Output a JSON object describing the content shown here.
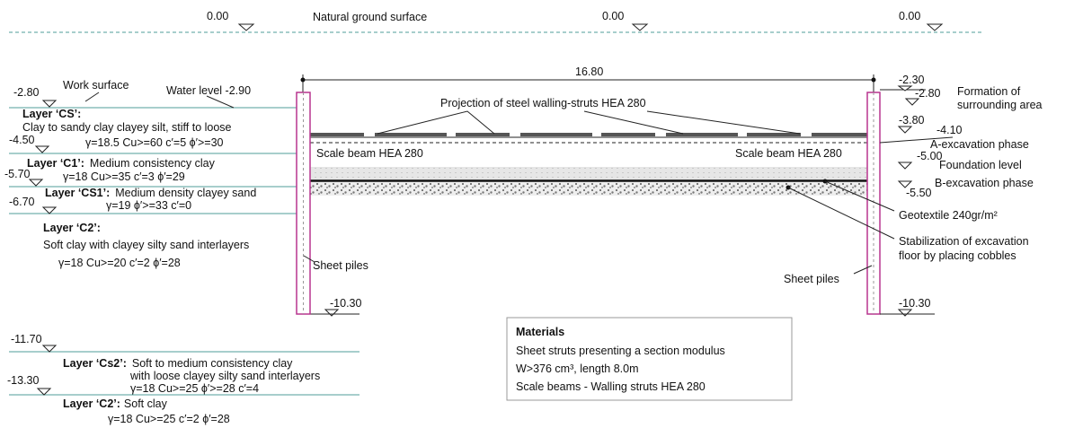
{
  "ground": {
    "label": "Natural ground surface",
    "elevations": [
      "0.00",
      "0.00",
      "0.00"
    ]
  },
  "span": "16.80",
  "left_elevations": [
    "-2.80",
    "-4.50",
    "-5.70",
    "-6.70",
    "-10.30",
    "-11.70",
    "-13.30"
  ],
  "right_elevations": [
    "-2.30",
    "-2.80",
    "-3.80",
    "-4.10",
    "-5.00",
    "-5.50",
    "-10.30"
  ],
  "labels": {
    "work_surface": "Work surface",
    "water_level": "Water level -2.90",
    "struts": "Projection of steel walling-struts HEA 280",
    "scale_beam_left": "Scale beam HEA 280",
    "scale_beam_right": "Scale beam HEA 280",
    "sheet_piles_left": "Sheet piles",
    "sheet_piles_right": "Sheet piles",
    "formation": [
      "Formation of",
      "surrounding area"
    ],
    "a_phase": "A-excavation phase",
    "foundation": "Foundation level",
    "b_phase": "B-excavation phase",
    "geotextile": "Geotextile 240gr/m²",
    "stabilization": [
      "Stabilization of excavation",
      "floor by placing cobbles"
    ]
  },
  "layers": [
    {
      "name": "Layer ‘CS’:",
      "description": [
        "Clay to sandy clay clayey silt, stiff to loose"
      ],
      "params": "γ=18.5    Cu>=60    c′=5    ϕ′>=30"
    },
    {
      "name": "Layer ‘C1’:",
      "description": [
        "Medium consistency clay"
      ],
      "params": "γ=18    Cu>=35    c′=3    ϕ′=29"
    },
    {
      "name": "Layer ‘CS1’:",
      "description": [
        "Medium density clayey sand"
      ],
      "params": "γ=19    ϕ′>=33    c′=0"
    },
    {
      "name": "Layer ‘C2’:",
      "description": [
        "Soft clay with clayey silty sand interlayers"
      ],
      "params": "γ=18     Cu>=20     c′=2     ϕ′=28"
    },
    {
      "name": "Layer ‘Cs2’:",
      "description": [
        "Soft to medium consistency clay",
        "with loose clayey silty sand interlayers"
      ],
      "params": "γ=18     Cu>=25     ϕ′>=28     c′=4"
    },
    {
      "name": "Layer ‘C2’:",
      "description": [
        "Soft clay"
      ],
      "params": "γ=18     Cu>=25      c′=2      ϕ′=28"
    }
  ],
  "materials": {
    "title": "Materials",
    "lines": [
      "Sheet struts presenting a section modulus",
      "W>376 cm³, length 8.0m",
      "Scale beams - Walling struts HEA 280"
    ]
  }
}
